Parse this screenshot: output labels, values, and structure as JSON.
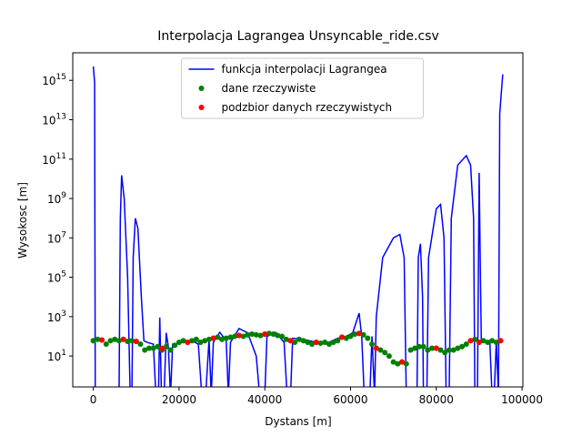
{
  "chart_data": {
    "type": "line",
    "title": "Interpolacja Lagrangea Unsyncable_ride.csv",
    "xlabel": "Dystans [m]",
    "ylabel": "Wysokosc [m]",
    "xlim": [
      -4800,
      100200
    ],
    "ylim": [
      0.27,
      2.5e+16
    ],
    "yscale": "log",
    "xticks": [
      0,
      20000,
      40000,
      60000,
      80000,
      100000
    ],
    "yticks": [
      {
        "value": 10,
        "label": "10^1"
      },
      {
        "value": 1000,
        "label": "10^3"
      },
      {
        "value": 100000,
        "label": "10^5"
      },
      {
        "value": 10000000,
        "label": "10^7"
      },
      {
        "value": 1000000000,
        "label": "10^9"
      },
      {
        "value": 100000000000,
        "label": "10^11"
      },
      {
        "value": 10000000000000,
        "label": "10^13"
      },
      {
        "value": 1000000000000000,
        "label": "10^15"
      }
    ],
    "legend": "upper center",
    "series": [
      {
        "name": "funkcja interpolacji Lagrangea",
        "type": "line",
        "color": "#0000ff",
        "x": [
          0,
          300,
          450,
          6000,
          6300,
          6600,
          7200,
          8000,
          8600,
          9000,
          9300,
          9800,
          10400,
          11200,
          11800,
          12500,
          14000,
          14600,
          15200,
          15500,
          15900,
          16500,
          17000,
          17500,
          18000,
          18500,
          19500,
          21000,
          23000,
          24500,
          25300,
          26200,
          27000,
          27500,
          28000,
          29500,
          31000,
          31500,
          32000,
          34000,
          36000,
          38000,
          38800,
          40000,
          40500,
          42500,
          44500,
          45200,
          46000,
          46500,
          49000,
          52000,
          55000,
          57000,
          59000,
          60500,
          62000,
          62600,
          63200,
          64500,
          65000,
          65600,
          66000,
          67500,
          70000,
          71500,
          72500,
          73000,
          75500,
          75800,
          76300,
          76800,
          77000,
          77800,
          78200,
          80000,
          81000,
          81800,
          82300,
          83000,
          83500,
          85000,
          87000,
          88000,
          88700,
          89000,
          89600,
          90000,
          90300,
          90500,
          92500,
          93000,
          93500,
          94000,
          94500,
          94800,
          95500
        ],
        "values": [
          5000000000000000.0,
          800000000000000.0,
          0.1,
          0.1,
          100000000.0,
          15000000000.0,
          1000000000.0,
          100000.0,
          0.1,
          0.1,
          1000000.0,
          100000000.0,
          30000000.0,
          10000.0,
          60,
          50,
          40,
          0.1,
          0.1,
          900,
          0.1,
          0.1,
          150,
          30,
          0.1,
          40,
          40,
          60,
          60,
          40,
          0.1,
          0.1,
          70,
          0.1,
          50,
          160,
          60,
          0.1,
          50,
          250,
          150,
          10,
          0.1,
          0.1,
          100,
          160,
          50,
          0.1,
          0.1,
          80,
          70,
          50,
          50,
          80,
          100,
          150,
          1500,
          100,
          0.1,
          0.1,
          100,
          0.1,
          1000,
          1000000.0,
          10000000.0,
          15000000.0,
          1000000.0,
          0.1,
          0.1,
          1000000.0,
          5000000.0,
          10000.0,
          0.1,
          0.1,
          1000000.0,
          300000000.0,
          500000000.0,
          10000000.0,
          0.1,
          0.1,
          100000000.0,
          50000000000.0,
          150000000000.0,
          50000000000.0,
          100000000.0,
          0.1,
          0.1,
          20000000000.0,
          100000.0,
          60,
          50,
          0.1,
          0.1,
          60,
          0.1,
          20000000000000.0,
          2000000000000000.0
        ]
      },
      {
        "name": "dane rzeczywiste",
        "type": "scatter",
        "color": "#008000",
        "x": [
          0,
          1000,
          2000,
          3000,
          4000,
          5000,
          6000,
          7000,
          8000,
          9000,
          10000,
          11000,
          12000,
          13000,
          14000,
          15000,
          16000,
          17000,
          18000,
          19000,
          20000,
          21000,
          22000,
          23000,
          24000,
          25000,
          26000,
          27000,
          28000,
          29000,
          30000,
          31000,
          32000,
          33000,
          34000,
          35000,
          36000,
          37000,
          38000,
          39000,
          40000,
          41000,
          42000,
          43000,
          44000,
          45000,
          46000,
          47000,
          48000,
          49000,
          50000,
          51000,
          52000,
          53000,
          54000,
          55000,
          56000,
          57000,
          58000,
          59000,
          60000,
          61000,
          62000,
          63000,
          64000,
          65000,
          66000,
          67000,
          68000,
          69000,
          70000,
          71000,
          72000,
          73000,
          74000,
          75000,
          76000,
          77000,
          78000,
          79000,
          80000,
          81000,
          82000,
          83000,
          84000,
          85000,
          86000,
          87000,
          88000,
          89000,
          90000,
          91000,
          92000,
          93000,
          94000,
          95000
        ],
        "values": [
          60,
          70,
          65,
          40,
          60,
          70,
          60,
          70,
          55,
          60,
          55,
          40,
          20,
          25,
          25,
          30,
          20,
          30,
          20,
          35,
          50,
          60,
          50,
          60,
          70,
          50,
          60,
          70,
          80,
          90,
          70,
          80,
          90,
          100,
          110,
          100,
          120,
          130,
          120,
          110,
          130,
          140,
          130,
          110,
          100,
          70,
          60,
          50,
          70,
          60,
          50,
          40,
          50,
          45,
          50,
          40,
          50,
          60,
          90,
          80,
          100,
          130,
          140,
          120,
          80,
          40,
          25,
          20,
          15,
          10,
          5,
          4,
          5,
          4,
          20,
          25,
          30,
          30,
          20,
          25,
          25,
          20,
          15,
          20,
          20,
          25,
          30,
          40,
          60,
          70,
          50,
          60,
          50,
          60,
          50,
          60
        ]
      },
      {
        "name": "podzbior danych rzeczywistych",
        "type": "scatter",
        "color": "#ff0000",
        "x": [
          2000,
          7000,
          10000,
          16000,
          22000,
          28000,
          34000,
          40000,
          46000,
          52000,
          58000,
          62000,
          66000,
          72000,
          80000,
          88000,
          90000,
          95000
        ],
        "values": [
          65,
          70,
          55,
          25,
          50,
          80,
          110,
          130,
          60,
          50,
          90,
          140,
          25,
          5,
          25,
          60,
          50,
          60
        ]
      }
    ]
  }
}
